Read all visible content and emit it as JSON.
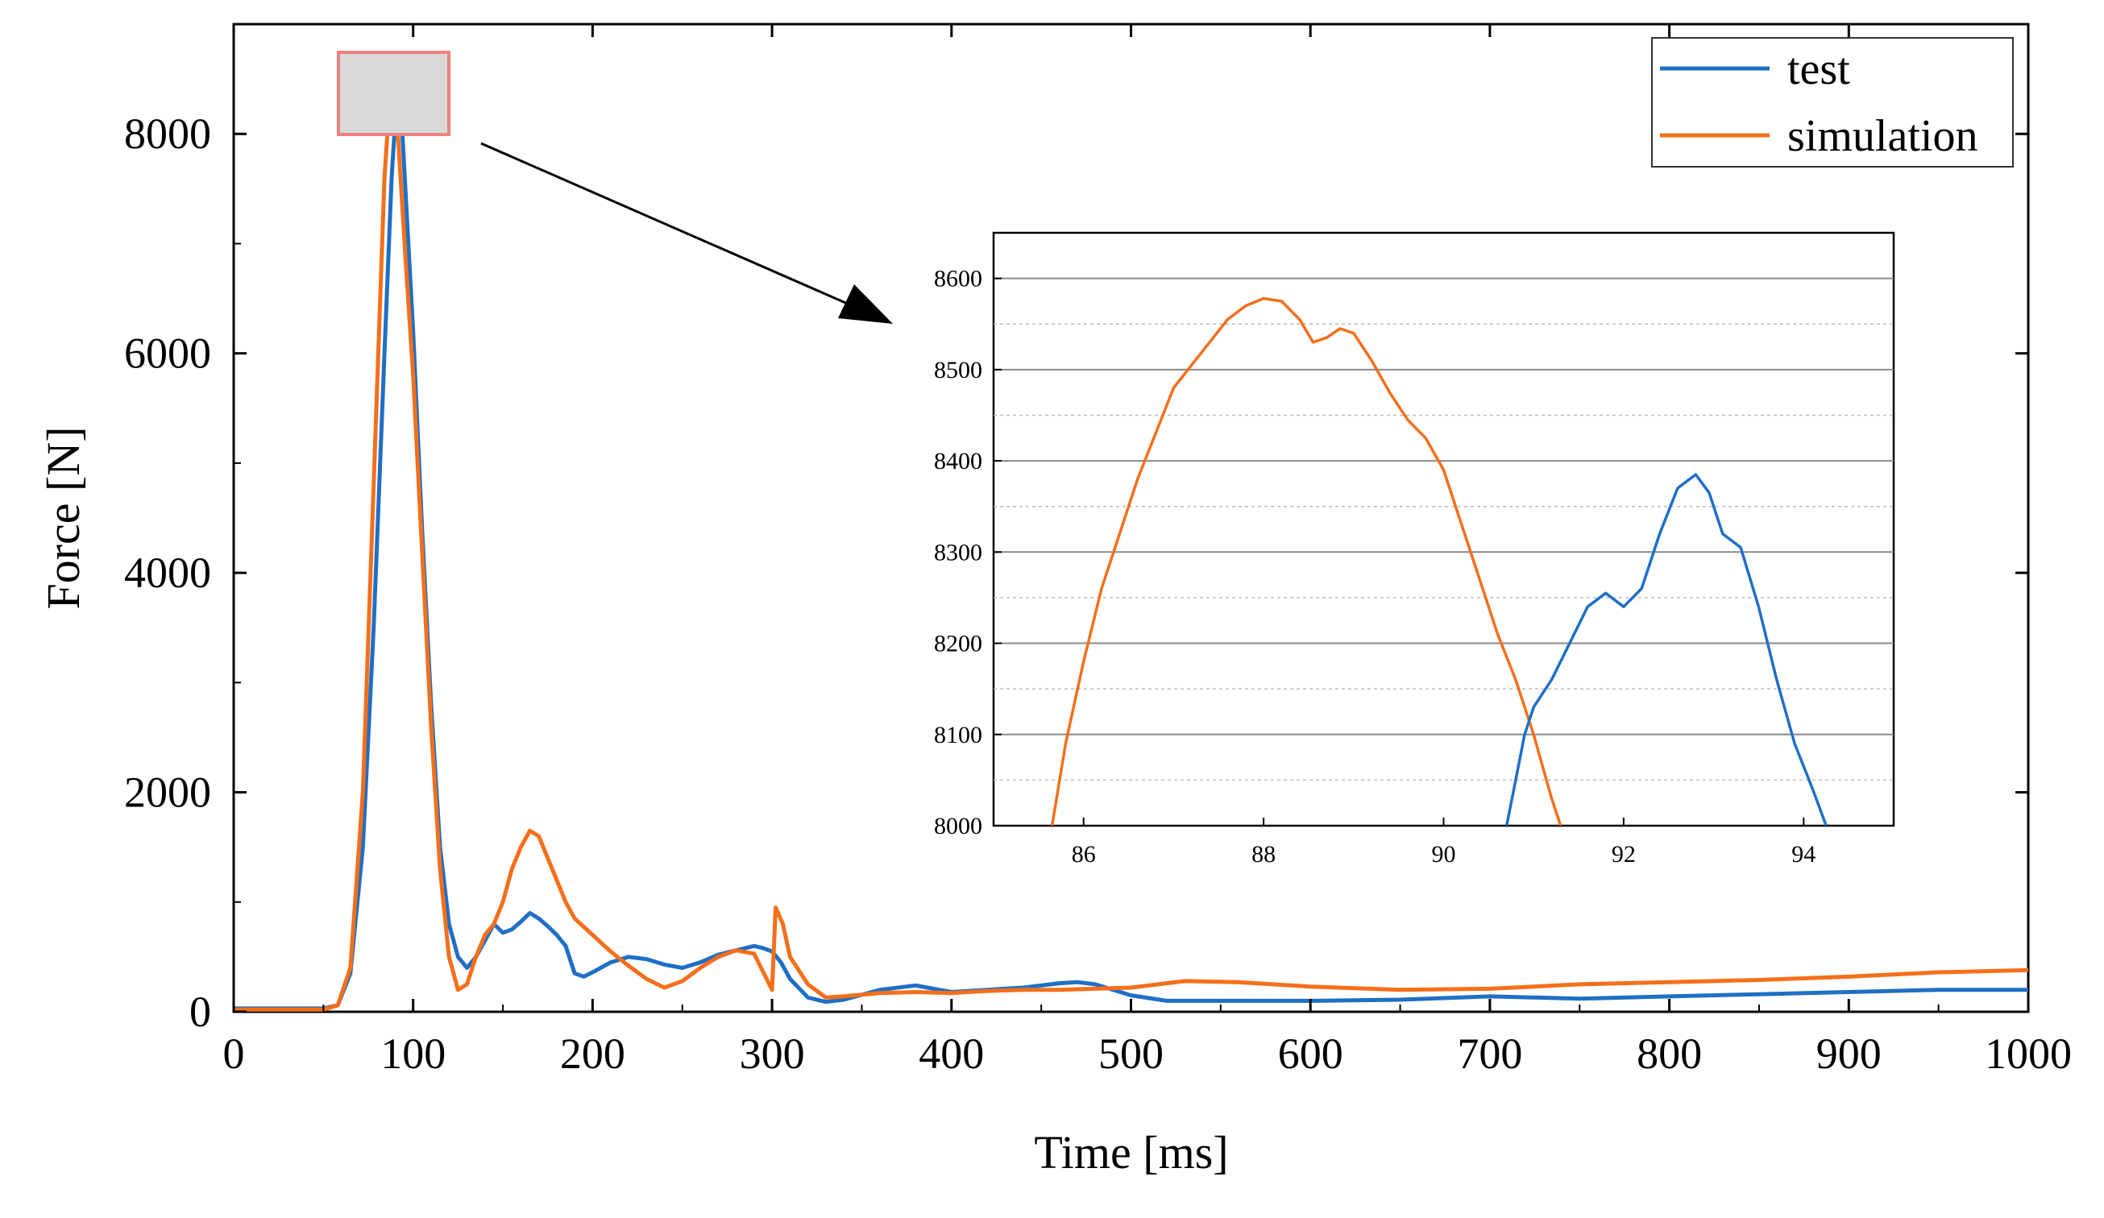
{
  "chart_data": [
    {
      "id": "main",
      "type": "line",
      "xlabel": "Time [ms]",
      "ylabel": "Force [N]",
      "xlim": [
        0,
        1000
      ],
      "ylim": [
        0,
        9000
      ],
      "xticks": [
        0,
        100,
        200,
        300,
        400,
        500,
        600,
        700,
        800,
        900,
        1000
      ],
      "yticks": [
        0,
        2000,
        4000,
        6000,
        8000
      ],
      "grid": false,
      "legend_position": "top-right",
      "series": [
        {
          "name": "test",
          "color": "#1f6fc5",
          "x": [
            0,
            50,
            58,
            65,
            72,
            78,
            84,
            88,
            91,
            93,
            96,
            100,
            105,
            110,
            115,
            120,
            125,
            130,
            135,
            140,
            145,
            150,
            155,
            160,
            165,
            170,
            175,
            180,
            185,
            190,
            195,
            200,
            210,
            220,
            230,
            240,
            250,
            260,
            270,
            280,
            290,
            295,
            300,
            305,
            310,
            320,
            330,
            340,
            360,
            380,
            400,
            420,
            440,
            460,
            470,
            480,
            500,
            520,
            550,
            600,
            650,
            700,
            750,
            800,
            850,
            900,
            950,
            1000
          ],
          "y": [
            30,
            30,
            60,
            350,
            1500,
            3500,
            6000,
            7600,
            8380,
            8300,
            7400,
            6200,
            4400,
            2800,
            1500,
            800,
            500,
            400,
            500,
            650,
            800,
            720,
            750,
            820,
            900,
            850,
            780,
            700,
            600,
            350,
            320,
            360,
            450,
            500,
            480,
            430,
            400,
            450,
            520,
            560,
            600,
            580,
            550,
            450,
            300,
            130,
            90,
            110,
            200,
            240,
            180,
            200,
            220,
            260,
            270,
            250,
            150,
            100,
            100,
            100,
            110,
            140,
            120,
            140,
            160,
            180,
            200,
            200
          ]
        },
        {
          "name": "simulation",
          "color": "#f46f1b",
          "x": [
            0,
            50,
            58,
            65,
            72,
            78,
            84,
            88,
            90,
            93,
            96,
            100,
            105,
            110,
            115,
            120,
            125,
            130,
            135,
            140,
            145,
            150,
            155,
            160,
            165,
            170,
            175,
            180,
            185,
            190,
            200,
            210,
            220,
            230,
            240,
            250,
            260,
            270,
            280,
            290,
            300,
            302,
            306,
            310,
            320,
            330,
            340,
            360,
            380,
            400,
            420,
            440,
            460,
            480,
            500,
            530,
            560,
            600,
            650,
            700,
            750,
            800,
            850,
            900,
            950,
            1000
          ],
          "y": [
            20,
            20,
            60,
            400,
            2000,
            4800,
            7600,
            8570,
            8400,
            7600,
            6800,
            5800,
            4200,
            2600,
            1300,
            500,
            200,
            250,
            500,
            700,
            800,
            1000,
            1300,
            1500,
            1650,
            1600,
            1400,
            1200,
            1000,
            850,
            700,
            550,
            420,
            300,
            220,
            280,
            400,
            500,
            560,
            530,
            200,
            950,
            800,
            500,
            250,
            130,
            140,
            170,
            180,
            170,
            190,
            200,
            200,
            210,
            220,
            280,
            270,
            230,
            200,
            210,
            250,
            270,
            290,
            320,
            360,
            380
          ]
        }
      ]
    },
    {
      "id": "inset",
      "type": "line",
      "xlim": [
        85,
        95
      ],
      "ylim": [
        8000,
        8650
      ],
      "xticks": [
        86,
        88,
        90,
        92,
        94
      ],
      "yticks": [
        8000,
        8100,
        8200,
        8300,
        8400,
        8500,
        8600
      ],
      "grid": true,
      "series": [
        {
          "name": "simulation",
          "color": "#f46f1b",
          "x": [
            85.65,
            85.8,
            86.0,
            86.2,
            86.4,
            86.6,
            86.8,
            87.0,
            87.2,
            87.4,
            87.6,
            87.8,
            88.0,
            88.2,
            88.4,
            88.55,
            88.7,
            88.85,
            89.0,
            89.2,
            89.4,
            89.6,
            89.8,
            90.0,
            90.2,
            90.4,
            90.6,
            90.8,
            91.0,
            91.2,
            91.3
          ],
          "y": [
            8000,
            8090,
            8180,
            8260,
            8320,
            8380,
            8430,
            8480,
            8505,
            8530,
            8555,
            8570,
            8578,
            8575,
            8555,
            8530,
            8535,
            8545,
            8540,
            8510,
            8475,
            8445,
            8425,
            8390,
            8330,
            8270,
            8210,
            8160,
            8100,
            8030,
            8000
          ]
        },
        {
          "name": "test",
          "color": "#1f6fc5",
          "x": [
            90.7,
            90.8,
            90.9,
            91.0,
            91.2,
            91.4,
            91.6,
            91.8,
            92.0,
            92.2,
            92.4,
            92.6,
            92.8,
            92.95,
            93.1,
            93.3,
            93.5,
            93.7,
            93.9,
            94.1,
            94.25
          ],
          "y": [
            8000,
            8050,
            8100,
            8130,
            8160,
            8200,
            8240,
            8255,
            8240,
            8260,
            8320,
            8370,
            8385,
            8365,
            8320,
            8305,
            8240,
            8160,
            8090,
            8040,
            8000
          ]
        }
      ]
    }
  ],
  "legend": {
    "items": [
      {
        "label": "test",
        "color": "#1f6fc5"
      },
      {
        "label": "simulation",
        "color": "#f46f1b"
      }
    ]
  },
  "zoom": {
    "box_color": "#f08080",
    "box_fill": "#d9d9d9",
    "range_x": [
      85,
      95
    ],
    "range_y": [
      8000,
      8650
    ]
  }
}
